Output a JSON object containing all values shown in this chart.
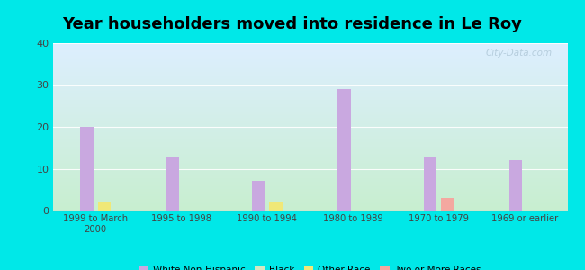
{
  "title": "Year householders moved into residence in Le Roy",
  "categories": [
    "1999 to March\n2000",
    "1995 to 1998",
    "1990 to 1994",
    "1980 to 1989",
    "1970 to 1979",
    "1969 or earlier"
  ],
  "series": {
    "White Non-Hispanic": [
      20,
      13,
      7,
      29,
      13,
      12
    ],
    "Black": [
      0,
      0,
      0,
      0,
      0,
      0
    ],
    "Other Race": [
      2,
      0,
      2,
      0,
      0,
      0
    ],
    "Two or More Races": [
      0,
      0,
      0,
      0,
      3,
      0
    ]
  },
  "colors": {
    "White Non-Hispanic": "#c9a8e0",
    "Black": "#d4e8c2",
    "Other Race": "#f0e878",
    "Two or More Races": "#f4a8a0"
  },
  "ylim": [
    0,
    40
  ],
  "yticks": [
    0,
    10,
    20,
    30,
    40
  ],
  "background_color": "#00e8e8",
  "grad_bottom": "#c8efd0",
  "grad_top": "#ddeeff",
  "title_fontsize": 13,
  "bar_width": 0.15,
  "legend_marker_size": 8
}
